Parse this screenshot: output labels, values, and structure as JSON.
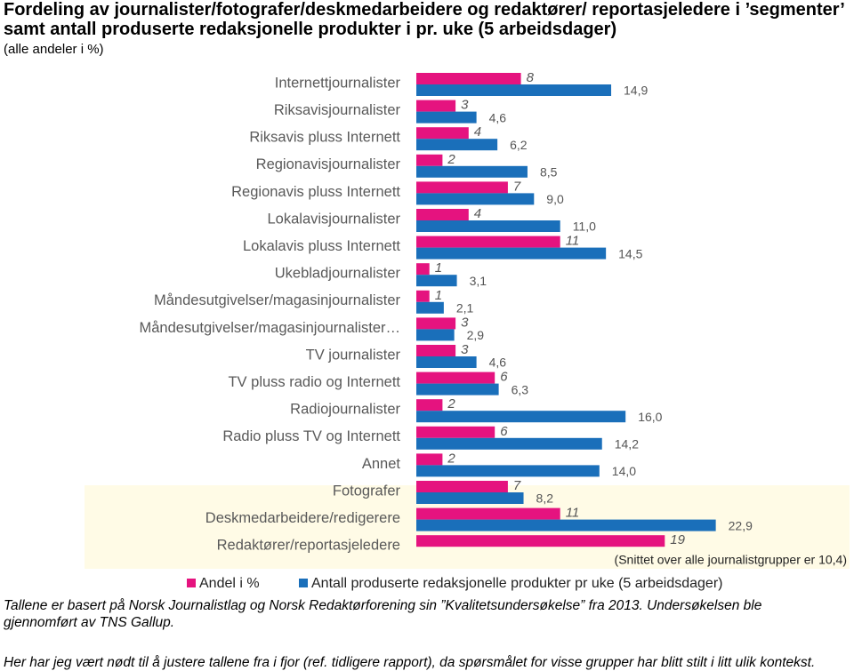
{
  "chart_data": {
    "type": "bar",
    "orientation": "horizontal",
    "title": "Fordeling av journalister/fotografer/deskmedarbeidere og redaktører/ reportasjeledere i ’segmenter’ samt antall produserte redaksjonelle produkter i pr. uke (5 arbeidsdager)",
    "subtitle": "(alle andeler i %)",
    "categories": [
      "Internettjournalister",
      "Riksavisjournalister",
      "Riksavis pluss Internett",
      "Regionavisjournalister",
      "Regionavis pluss Internett",
      "Lokalavisjournalister",
      "Lokalavis pluss Internett",
      "Ukebladjournalister",
      "Måndesutgivelser/magasinjournalister",
      "Måndesutgivelser/magasinjournalister…",
      "TV journalister",
      "TV pluss radio og Internett",
      "Radiojournalister",
      "Radio pluss TV og Internett",
      "Annet",
      "Fotografer",
      "Deskmedarbeidere/redigerere",
      "Redaktører/reportasjeledere"
    ],
    "series": [
      {
        "name": "Andel i %",
        "color": "#e5137f",
        "values": [
          8,
          3,
          4,
          2,
          7,
          4,
          11,
          1,
          1,
          3,
          3,
          6,
          2,
          6,
          2,
          7,
          11,
          19
        ]
      },
      {
        "name": "Antall produserte redaksjonelle produkter pr uke (5 arbeidsdager)",
        "color": "#1a6fba",
        "values": [
          14.9,
          4.6,
          6.2,
          8.5,
          9.0,
          11.0,
          14.5,
          3.1,
          2.1,
          2.9,
          4.6,
          6.3,
          16.0,
          14.2,
          14.0,
          8.2,
          22.9,
          null
        ],
        "value_labels": [
          "14,9",
          "4,6",
          "6,2",
          "8,5",
          "9,0",
          "11,0",
          "14,5",
          "3,1",
          "2,1",
          "2,9",
          "4,6",
          "6,3",
          "16,0",
          "14,2",
          "14,0",
          "8,2",
          "22,9",
          null
        ]
      }
    ],
    "annotation": "(Snittet over alle  journalistgrupper er 10,4)",
    "notes": [
      "Tallene er  basert på Norsk Journalistlag og Norsk Redaktørforening sin ”Kvalitetsundersøkelse” fra 2013.  Undersøkelsen ble gjennomført av TNS Gallup.",
      "Her har jeg vært nødt til å justere tallene fra i fjor (ref. tidligere rapport), da spørsmålet for visse grupper har blitt stilt i litt ulik kontekst."
    ]
  }
}
